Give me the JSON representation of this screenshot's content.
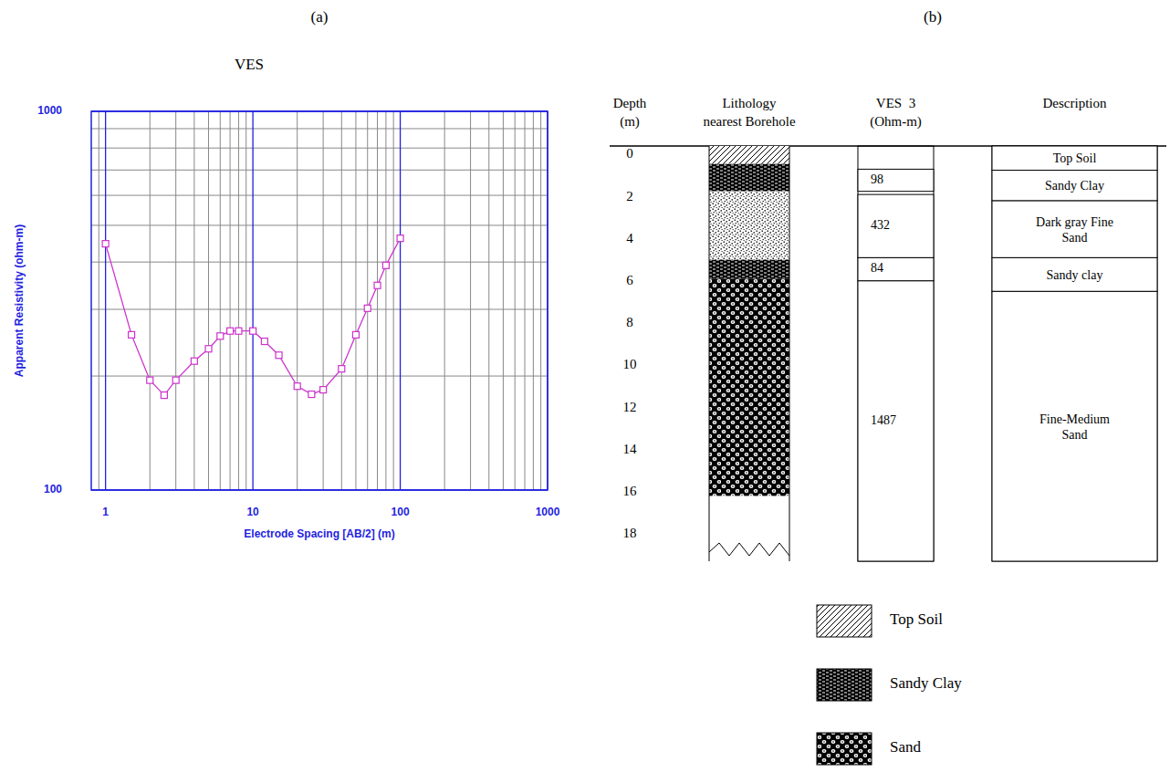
{
  "panels": [
    "(a)",
    "(b)"
  ],
  "chart_data": {
    "type": "line",
    "title": "VES",
    "x_label": "Electrode Spacing [AB/2] (m)",
    "y_label": "Apparent Resistivity (ohm-m)",
    "x": [
      1,
      1.5,
      2,
      2.5,
      3,
      4,
      5,
      6,
      7,
      8,
      10,
      12,
      15,
      20,
      25,
      30,
      40,
      50,
      60,
      70,
      80,
      100
    ],
    "values": [
      447,
      257,
      195,
      178,
      195,
      219,
      236,
      255,
      263,
      263,
      263,
      247,
      227,
      188,
      179,
      184,
      209,
      257,
      302,
      347,
      392,
      462
    ],
    "color": "#cc33cc",
    "marker": "square",
    "line_style": "solid",
    "log": true,
    "grid": true,
    "xlim": [
      0.8,
      1000
    ],
    "ylim": [
      100,
      1000
    ],
    "xticks": [
      1,
      10,
      100,
      1000
    ],
    "yticks": [
      100,
      1000
    ]
  },
  "diagram": {
    "headers": {
      "depth": [
        "Depth",
        "(m)"
      ],
      "lithology": [
        "Lithology",
        "nearest Borehole"
      ],
      "ves": [
        "VES  3",
        "(Ohm-m)"
      ],
      "description": [
        "Description"
      ]
    },
    "ylim": [
      0,
      19.7
    ],
    "yticks": [
      0,
      2,
      4,
      6,
      8,
      10,
      12,
      14,
      16,
      18
    ],
    "lithology": [
      {
        "lithology": "Top Soil",
        "top": 0,
        "bottom": 0.85
      },
      {
        "lithology": "Sandy Clay",
        "top": 0.85,
        "bottom": 2.15
      },
      {
        "lithology": "Dark gray Fine Sand",
        "top": 2.15,
        "bottom": 5.4
      },
      {
        "lithology": "Sandy Clay",
        "top": 5.4,
        "bottom": 6.3
      },
      {
        "lithology": "Sand",
        "top": 6.3,
        "bottom": 16.6
      }
    ],
    "ves": [
      {
        "value": 98,
        "top": 1.1,
        "bottom": 2.15
      },
      {
        "value": 432,
        "top": 2.3,
        "bottom": 5.3
      },
      {
        "value": 84,
        "top": 5.3,
        "bottom": 6.4
      },
      {
        "value": 1487,
        "top": 6.4,
        "bottom": 19.7
      }
    ],
    "description": [
      {
        "text": "Top Soil",
        "top": 0,
        "bottom": 1.15
      },
      {
        "text": "Sandy Clay",
        "top": 1.15,
        "bottom": 2.6
      },
      {
        "text": "Dark gray Fine Sand",
        "top": 2.6,
        "bottom": 5.3
      },
      {
        "text": "Sandy clay",
        "top": 5.3,
        "bottom": 6.9
      },
      {
        "text": "Fine-Medium Sand",
        "top": 6.9,
        "bottom": 19.7
      }
    ],
    "key": [
      "Top Soil",
      "Sandy Clay",
      "Sand"
    ]
  }
}
